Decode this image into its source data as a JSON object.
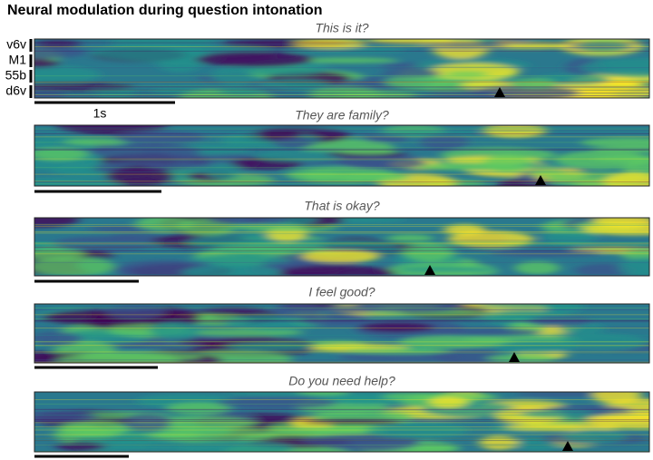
{
  "header": {
    "title": "Neural modulation during question intonation"
  },
  "panels": [
    {
      "title": "This is it?"
    },
    {
      "title": "They are family?"
    },
    {
      "title": "That is okay?"
    },
    {
      "title": "I feel good?"
    },
    {
      "title": "Do you need help?"
    }
  ],
  "regions": [
    "v6v",
    "M1",
    "55b",
    "d6v"
  ],
  "scale_label": "1s"
}
